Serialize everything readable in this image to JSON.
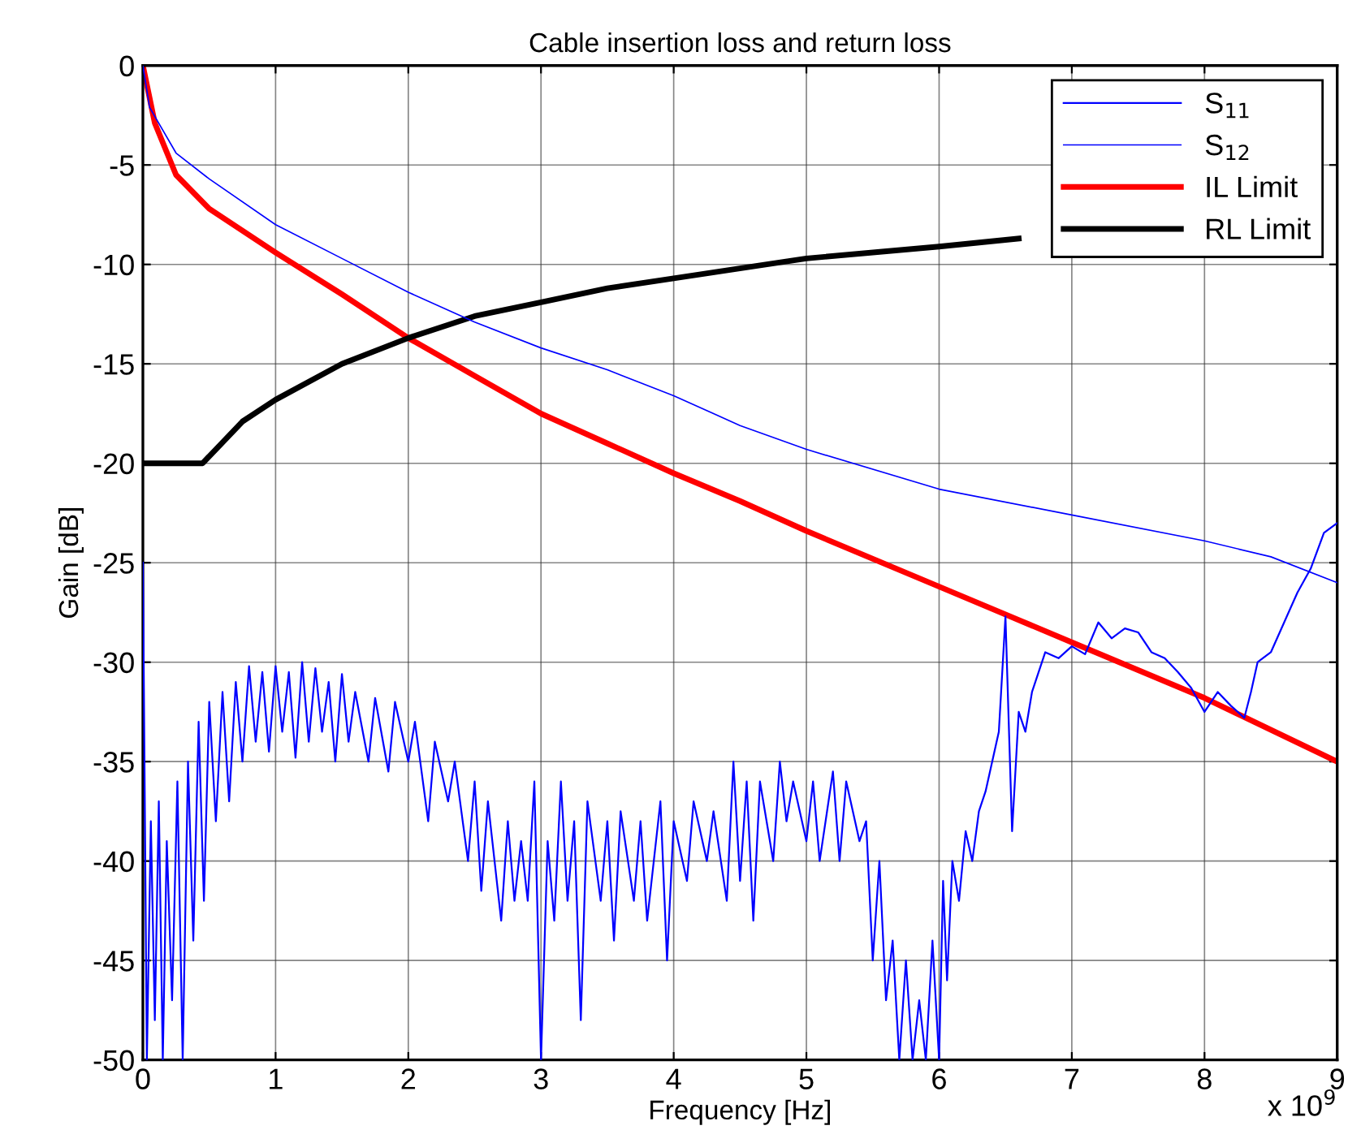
{
  "chart_data": {
    "type": "line",
    "title": "Cable insertion loss and return loss",
    "xlabel": "Frequency [Hz]",
    "ylabel": "Gain [dB]",
    "annotations": [
      "x 10$^{9}$"
    ],
    "xlim": [
      0,
      9
    ],
    "ylim": [
      -50,
      0
    ],
    "xticks": [
      0,
      1,
      2,
      3,
      4,
      5,
      6,
      7,
      8,
      9
    ],
    "yticks": [
      -50,
      -45,
      -40,
      -35,
      -30,
      -25,
      -20,
      -15,
      -10,
      -5,
      0
    ],
    "grid": true,
    "legend": "top right",
    "marker": "none",
    "line_style": "solid",
    "series": [
      {
        "name": "S$_{11}$",
        "color": "#0000ff",
        "x": [
          0,
          0.03,
          0.06,
          0.09,
          0.12,
          0.15,
          0.18,
          0.22,
          0.26,
          0.3,
          0.34,
          0.38,
          0.42,
          0.46,
          0.5,
          0.55,
          0.6,
          0.65,
          0.7,
          0.75,
          0.8,
          0.85,
          0.9,
          0.95,
          1.0,
          1.05,
          1.1,
          1.15,
          1.2,
          1.25,
          1.3,
          1.35,
          1.4,
          1.45,
          1.5,
          1.55,
          1.6,
          1.7,
          1.75,
          1.85,
          1.9,
          2.0,
          2.05,
          2.15,
          2.2,
          2.3,
          2.35,
          2.45,
          2.5,
          2.55,
          2.6,
          2.7,
          2.75,
          2.8,
          2.85,
          2.9,
          2.95,
          3.0,
          3.05,
          3.1,
          3.15,
          3.2,
          3.25,
          3.3,
          3.35,
          3.45,
          3.5,
          3.55,
          3.6,
          3.7,
          3.75,
          3.8,
          3.9,
          3.95,
          4.0,
          4.1,
          4.15,
          4.25,
          4.3,
          4.4,
          4.45,
          4.5,
          4.55,
          4.6,
          4.65,
          4.75,
          4.8,
          4.85,
          4.9,
          5.0,
          5.05,
          5.1,
          5.2,
          5.25,
          5.3,
          5.4,
          5.45,
          5.5,
          5.55,
          5.6,
          5.65,
          5.7,
          5.75,
          5.8,
          5.85,
          5.9,
          5.95,
          6.0,
          6.03,
          6.06,
          6.1,
          6.15,
          6.2,
          6.25,
          6.3,
          6.35,
          6.4,
          6.45,
          6.5,
          6.55,
          6.6,
          6.65,
          6.7,
          6.75,
          6.8,
          6.9,
          7.0,
          7.1,
          7.2,
          7.3,
          7.4,
          7.5,
          7.6,
          7.7,
          7.8,
          7.9,
          8.0,
          8.1,
          8.2,
          8.3,
          8.35,
          8.4,
          8.5,
          8.6,
          8.7,
          8.8,
          8.9,
          9.0
        ],
        "values": [
          -25,
          -50,
          -38,
          -48,
          -37,
          -50,
          -39,
          -47,
          -36,
          -50,
          -35,
          -44,
          -33,
          -42,
          -32,
          -38,
          -31.5,
          -37,
          -31,
          -35,
          -30.2,
          -34,
          -30.5,
          -34.5,
          -30.2,
          -33.5,
          -30.5,
          -34.8,
          -30,
          -34,
          -30.3,
          -33.5,
          -31,
          -35,
          -30.6,
          -34,
          -31.5,
          -35,
          -31.8,
          -35.5,
          -32,
          -35,
          -33,
          -38,
          -34,
          -37,
          -35,
          -40,
          -36,
          -41.5,
          -37,
          -43,
          -38,
          -42,
          -39,
          -42,
          -36,
          -50,
          -39,
          -43,
          -36,
          -42,
          -38,
          -48,
          -37,
          -42,
          -38,
          -44,
          -37.5,
          -42,
          -38,
          -43,
          -37,
          -45,
          -38,
          -41,
          -37,
          -40,
          -37.5,
          -42,
          -35,
          -41,
          -36,
          -43,
          -36,
          -40,
          -35,
          -38,
          -36,
          -39,
          -36,
          -40,
          -35.5,
          -40,
          -36,
          -39,
          -38,
          -45,
          -40,
          -47,
          -44,
          -50,
          -45,
          -50,
          -47,
          -50,
          -44,
          -50,
          -41,
          -46,
          -40,
          -42,
          -38.5,
          -40,
          -37.5,
          -36.5,
          -35,
          -33.5,
          -27.7,
          -38.5,
          -32.5,
          -33.5,
          -31.5,
          -30.5,
          -29.5,
          -29.8,
          -29.2,
          -29.6,
          -28,
          -28.8,
          -28.3,
          -28.5,
          -29.5,
          -29.8,
          -30.5,
          -31.3,
          -32.5,
          -31.5,
          -32.2,
          -32.8,
          -31.5,
          -30,
          -29.5,
          -28,
          -26.5,
          -25.3,
          -23.5,
          -23
        ]
      },
      {
        "name": "S$_{12}$",
        "color": "#0000ff",
        "x": [
          0,
          0.05,
          0.25,
          0.5,
          1,
          1.5,
          2,
          2.5,
          3,
          3.5,
          4,
          4.5,
          5,
          6,
          7,
          8,
          8.5,
          9
        ],
        "values": [
          0,
          -2.1,
          -4.4,
          -5.7,
          -8.0,
          -9.7,
          -11.4,
          -12.9,
          -14.2,
          -15.3,
          -16.6,
          -18.1,
          -19.3,
          -21.3,
          -22.6,
          -23.9,
          -24.7,
          -26.0
        ]
      },
      {
        "name": "IL Limit",
        "color": "#ff0000",
        "x": [
          0,
          0.09,
          0.25,
          0.5,
          1,
          1.5,
          2,
          2.5,
          3,
          3.5,
          4,
          4.5,
          5,
          6,
          7,
          8,
          9
        ],
        "values": [
          0,
          -2.9,
          -5.5,
          -7.2,
          -9.4,
          -11.5,
          -13.7,
          -15.6,
          -17.5,
          -19.0,
          -20.5,
          -21.9,
          -23.4,
          -26.2,
          -29.0,
          -31.8,
          -35.0
        ]
      },
      {
        "name": "RL Limit",
        "color": "#000000",
        "x": [
          0,
          0.45,
          0.75,
          1,
          1.5,
          2,
          2.5,
          3,
          3.5,
          4,
          4.6,
          5,
          6,
          6.6
        ],
        "values": [
          -20,
          -20,
          -17.9,
          -16.8,
          -15.0,
          -13.7,
          -12.6,
          -11.9,
          -11.2,
          -10.7,
          -10.1,
          -9.7,
          -9.1,
          -8.7
        ]
      }
    ]
  }
}
